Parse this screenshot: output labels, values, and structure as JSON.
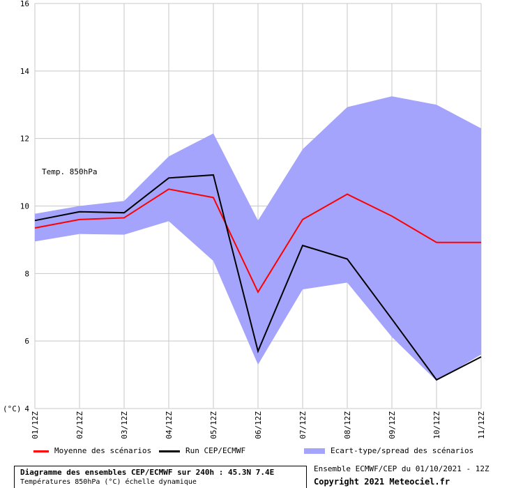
{
  "chart_data": {
    "type": "line",
    "annotation": "Temp. 850hPa",
    "ylabel": "(°C)",
    "ylim": [
      4,
      16
    ],
    "yticks": [
      4,
      6,
      8,
      10,
      12,
      14,
      16
    ],
    "grid": true,
    "categories": [
      "01/12Z",
      "02/12Z",
      "03/12Z",
      "04/12Z",
      "05/12Z",
      "06/12Z",
      "07/12Z",
      "08/12Z",
      "09/12Z",
      "10/12Z",
      "11/12Z"
    ],
    "series": [
      {
        "name": "Moyenne des scénarios",
        "color": "#ff0000",
        "values": [
          9.35,
          9.6,
          9.65,
          10.5,
          10.25,
          7.45,
          9.6,
          10.35,
          9.7,
          8.92,
          8.92
        ]
      },
      {
        "name": "Run CEP/ECMWF",
        "color": "#000000",
        "values": [
          9.57,
          9.83,
          9.8,
          10.83,
          10.92,
          5.7,
          8.83,
          8.43,
          6.65,
          4.85,
          5.53
        ]
      }
    ],
    "band": {
      "name": "Ecart-type/spread des scénarios",
      "color": "#a4a4fc",
      "upper": [
        9.77,
        10.0,
        10.15,
        11.47,
        12.15,
        9.57,
        11.68,
        12.93,
        13.25,
        13.0,
        12.3
      ],
      "lower": [
        8.95,
        9.17,
        9.15,
        9.55,
        8.37,
        5.3,
        7.53,
        7.73,
        6.12,
        4.82,
        5.6
      ]
    }
  },
  "footer": {
    "title": "Diagramme des ensembles CEP/ECMWF sur 240h : 45.3N 7.4E",
    "subtitle": "Températures 850hPa (°C) échelle dynamique",
    "ensemble": "Ensemble ECMWF/CEP du 01/10/2021 - 12Z",
    "copyright": "Copyright 2021 Meteociel.fr"
  }
}
